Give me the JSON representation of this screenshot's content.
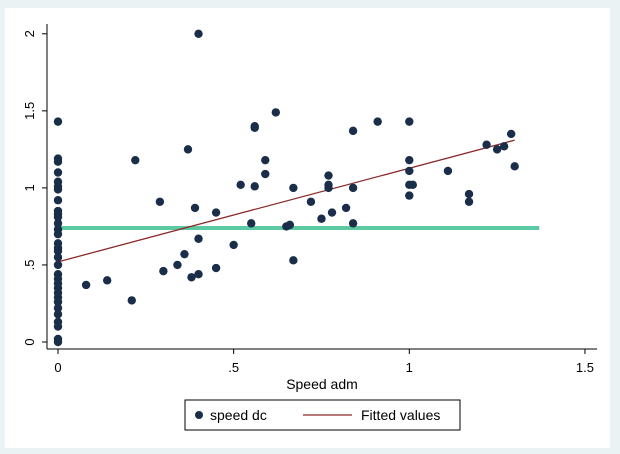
{
  "chart_data": {
    "type": "scatter",
    "xlabel": "Speed adm",
    "ylabel": "",
    "xlim": [
      0,
      1.5
    ],
    "ylim": [
      0,
      2
    ],
    "x_ticks": [
      {
        "value": 0,
        "label": "0"
      },
      {
        "value": 0.5,
        "label": ".5"
      },
      {
        "value": 1,
        "label": "1"
      },
      {
        "value": 1.5,
        "label": "1.5"
      }
    ],
    "y_ticks": [
      {
        "value": 0,
        "label": "0"
      },
      {
        "value": 0.5,
        "label": ".5"
      },
      {
        "value": 1,
        "label": "1"
      },
      {
        "value": 1.5,
        "label": "1.5"
      },
      {
        "value": 2,
        "label": "2"
      }
    ],
    "grid": false,
    "legend_position": "bottom",
    "legend": [
      {
        "label": "speed dc",
        "marker": "dot"
      },
      {
        "label": "Fitted values",
        "marker": "line"
      }
    ],
    "colors": {
      "background": "#eaf2f3",
      "plot_background": "#ffffff",
      "points": "#1a2e4a",
      "fitted_line": "#8b2b2b",
      "reference_line": "#5cc9a3"
    },
    "series": [
      {
        "name": "speed dc",
        "kind": "scatter",
        "points": [
          [
            0,
            0.0
          ],
          [
            0,
            0.02
          ],
          [
            0,
            0.1
          ],
          [
            0,
            0.13
          ],
          [
            0,
            0.18
          ],
          [
            0,
            0.22
          ],
          [
            0,
            0.26
          ],
          [
            0,
            0.29
          ],
          [
            0,
            0.32
          ],
          [
            0,
            0.35
          ],
          [
            0,
            0.38
          ],
          [
            0,
            0.41
          ],
          [
            0,
            0.44
          ],
          [
            0,
            0.5
          ],
          [
            0,
            0.55
          ],
          [
            0,
            0.59
          ],
          [
            0,
            0.61
          ],
          [
            0,
            0.64
          ],
          [
            0,
            0.7
          ],
          [
            0,
            0.73
          ],
          [
            0,
            0.77
          ],
          [
            0,
            0.81
          ],
          [
            0,
            0.83
          ],
          [
            0,
            0.85
          ],
          [
            0,
            0.92
          ],
          [
            0,
            0.99
          ],
          [
            0,
            1.01
          ],
          [
            0,
            1.04
          ],
          [
            0,
            1.1
          ],
          [
            0,
            1.17
          ],
          [
            0,
            1.19
          ],
          [
            0,
            1.43
          ],
          [
            0.08,
            0.37
          ],
          [
            0.14,
            0.4
          ],
          [
            0.21,
            0.27
          ],
          [
            0.22,
            1.18
          ],
          [
            0.29,
            0.91
          ],
          [
            0.3,
            0.46
          ],
          [
            0.34,
            0.5
          ],
          [
            0.36,
            0.57
          ],
          [
            0.37,
            1.25
          ],
          [
            0.38,
            0.42
          ],
          [
            0.39,
            0.87
          ],
          [
            0.4,
            0.44
          ],
          [
            0.4,
            0.67
          ],
          [
            0.4,
            2.0
          ],
          [
            0.45,
            0.48
          ],
          [
            0.45,
            0.84
          ],
          [
            0.5,
            0.63
          ],
          [
            0.52,
            1.02
          ],
          [
            0.55,
            0.77
          ],
          [
            0.56,
            1.01
          ],
          [
            0.56,
            1.39
          ],
          [
            0.56,
            1.4
          ],
          [
            0.59,
            1.09
          ],
          [
            0.59,
            1.18
          ],
          [
            0.62,
            1.49
          ],
          [
            0.65,
            0.75
          ],
          [
            0.66,
            0.76
          ],
          [
            0.67,
            0.53
          ],
          [
            0.67,
            1.0
          ],
          [
            0.72,
            0.91
          ],
          [
            0.75,
            0.8
          ],
          [
            0.77,
            1.0
          ],
          [
            0.77,
            1.02
          ],
          [
            0.77,
            1.08
          ],
          [
            0.78,
            0.84
          ],
          [
            0.82,
            0.87
          ],
          [
            0.84,
            0.77
          ],
          [
            0.84,
            1.0
          ],
          [
            0.84,
            1.37
          ],
          [
            0.91,
            1.43
          ],
          [
            1.0,
            0.95
          ],
          [
            1.0,
            1.02
          ],
          [
            1.0,
            1.11
          ],
          [
            1.0,
            1.18
          ],
          [
            1.0,
            1.43
          ],
          [
            1.01,
            1.02
          ],
          [
            1.11,
            1.11
          ],
          [
            1.17,
            0.91
          ],
          [
            1.17,
            0.96
          ],
          [
            1.22,
            1.28
          ],
          [
            1.25,
            1.25
          ],
          [
            1.27,
            1.27
          ],
          [
            1.29,
            1.35
          ],
          [
            1.3,
            1.14
          ]
        ]
      },
      {
        "name": "Fitted values",
        "kind": "line",
        "points": [
          [
            0,
            0.52
          ],
          [
            1.3,
            1.31
          ]
        ]
      },
      {
        "kind": "reference_line",
        "points": [
          [
            -0.01,
            0.74
          ],
          [
            1.37,
            0.74
          ]
        ]
      }
    ]
  }
}
